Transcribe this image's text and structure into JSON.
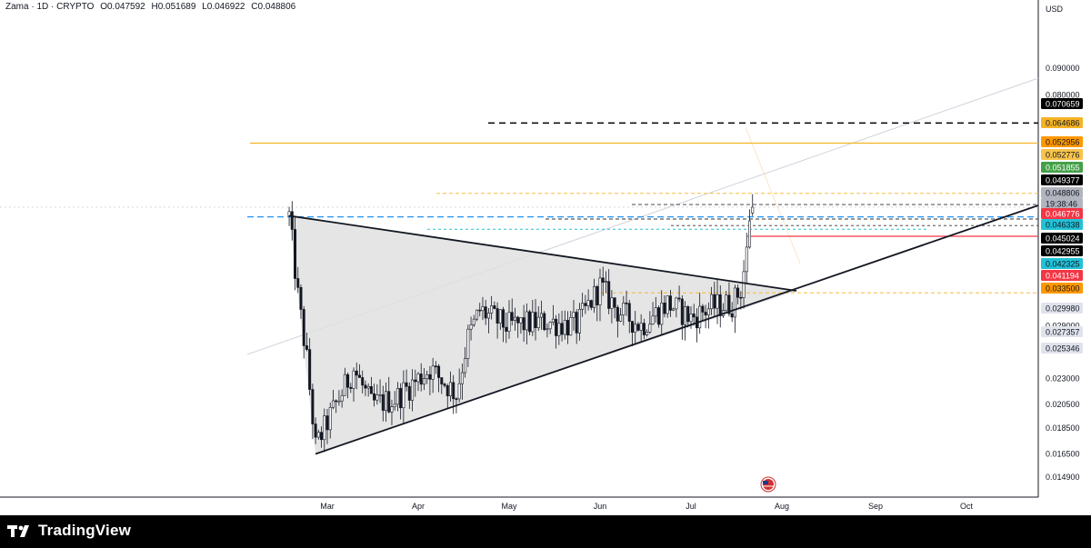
{
  "header": {
    "symbol": "Zama · 1D · CRYPTO",
    "open": "O0.047592",
    "high": "H0.051689",
    "low": "L0.046922",
    "close": "C0.048806"
  },
  "axis": {
    "currency": "USD",
    "y_ticks": [
      "0.090000",
      "0.080000",
      "0.029000",
      "0.026000",
      "0.023000",
      "0.020500",
      "0.018500",
      "0.016500",
      "0.014900"
    ],
    "x_ticks": [
      "Mar",
      "Apr",
      "May",
      "Jun",
      "Jul",
      "Aug",
      "Sep",
      "Oct"
    ]
  },
  "price_labels": [
    {
      "text": "0.070659",
      "bg": "#000000",
      "fg": "#ffffff"
    },
    {
      "text": "0.064686",
      "bg": "#f5b324",
      "fg": "#131722"
    },
    {
      "text": "0.052956",
      "bg": "#ff9800",
      "fg": "#131722"
    },
    {
      "text": "0.052776",
      "bg": "#f7c34a",
      "fg": "#131722"
    },
    {
      "text": "0.051855",
      "bg": "#43a047",
      "fg": "#ffffff"
    },
    {
      "text": "0.049377",
      "bg": "#000000",
      "fg": "#ffffff"
    },
    {
      "text": "0.048806",
      "bg": "#b2b5be",
      "fg": "#131722"
    },
    {
      "text": "19:38:46",
      "bg": "#b2b5be",
      "fg": "#131722"
    },
    {
      "text": "0.046776",
      "bg": "#f23645",
      "fg": "#ffffff"
    },
    {
      "text": "0.046338",
      "bg": "#22c1d6",
      "fg": "#131722"
    },
    {
      "text": "0.045024",
      "bg": "#000000",
      "fg": "#ffffff"
    },
    {
      "text": "0.042955",
      "bg": "#000000",
      "fg": "#ffffff"
    },
    {
      "text": "0.042325",
      "bg": "#22c1d6",
      "fg": "#131722"
    },
    {
      "text": "0.041194",
      "bg": "#f23645",
      "fg": "#ffffff"
    },
    {
      "text": "0.033500",
      "bg": "#ff9800",
      "fg": "#131722"
    },
    {
      "text": "0.029980",
      "bg": "#e0e3eb",
      "fg": "#131722"
    },
    {
      "text": "0.027357",
      "bg": "#e0e3eb",
      "fg": "#131722"
    },
    {
      "text": "0.025346",
      "bg": "#e0e3eb",
      "fg": "#131722"
    }
  ],
  "footer": {
    "brand": "TradingView"
  },
  "chart_data": {
    "type": "candlestick",
    "symbol": "Zama",
    "interval": "1D",
    "exchange": "CRYPTO",
    "currency": "USD",
    "last_ohlc": {
      "open": 0.047592,
      "high": 0.051689,
      "low": 0.046922,
      "close": 0.048806
    },
    "approx_close_path": [
      {
        "date": "Feb 16",
        "close": 0.047
      },
      {
        "date": "Feb 19",
        "close": 0.033
      },
      {
        "date": "Feb 22",
        "close": 0.025
      },
      {
        "date": "Feb 25",
        "close": 0.017
      },
      {
        "date": "Mar 2",
        "close": 0.0195
      },
      {
        "date": "Mar 10",
        "close": 0.024
      },
      {
        "date": "Mar 16",
        "close": 0.0205
      },
      {
        "date": "Mar 24",
        "close": 0.021
      },
      {
        "date": "Apr 5",
        "close": 0.024
      },
      {
        "date": "Apr 14",
        "close": 0.0215
      },
      {
        "date": "Apr 18",
        "close": 0.0275
      },
      {
        "date": "Apr 22",
        "close": 0.031
      },
      {
        "date": "May 1",
        "close": 0.029
      },
      {
        "date": "May 15",
        "close": 0.0295
      },
      {
        "date": "May 25",
        "close": 0.029
      },
      {
        "date": "Jun 2",
        "close": 0.0345
      },
      {
        "date": "Jun 8",
        "close": 0.031
      },
      {
        "date": "Jun 16",
        "close": 0.029
      },
      {
        "date": "Jun 25",
        "close": 0.032
      },
      {
        "date": "Jul 3",
        "close": 0.03
      },
      {
        "date": "Jul 10",
        "close": 0.0315
      },
      {
        "date": "Jul 17",
        "close": 0.032
      },
      {
        "date": "Jul 20",
        "close": 0.034
      },
      {
        "date": "Jul 22",
        "close": 0.04
      },
      {
        "date": "Jul 23",
        "close": 0.047
      },
      {
        "date": "Jul 24",
        "close": 0.0488
      }
    ],
    "pattern": "symmetrical triangle",
    "triangle": {
      "upper_trendline": [
        {
          "date": "Feb 16",
          "price": 0.047
        },
        {
          "date": "Jul 24",
          "price": 0.034
        }
      ],
      "lower_trendline": [
        {
          "date": "Feb 25",
          "price": 0.0165
        },
        {
          "date": "Sep 25",
          "price": 0.0495
        }
      ]
    },
    "horizontal_levels": [
      0.070659,
      0.064686,
      0.051855,
      0.049377,
      0.048806,
      0.046776,
      0.046338,
      0.045024,
      0.042955,
      0.041194,
      0.0335
    ],
    "y_scale": "log",
    "grid": false
  }
}
